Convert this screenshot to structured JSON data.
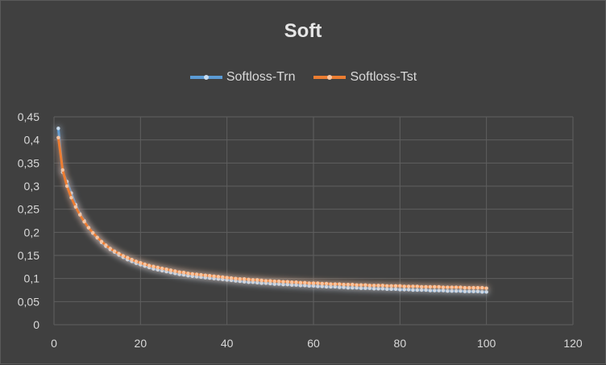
{
  "chart_data": {
    "type": "line",
    "title": "Soft",
    "xlabel": "",
    "ylabel": "",
    "xlim": [
      0,
      120
    ],
    "ylim": [
      0,
      0.45
    ],
    "x_ticks": [
      "0",
      "20",
      "40",
      "60",
      "80",
      "100",
      "120"
    ],
    "y_ticks": [
      "0",
      "0,05",
      "0,1",
      "0,15",
      "0,2",
      "0,25",
      "0,3",
      "0,35",
      "0,4",
      "0,45"
    ],
    "grid": true,
    "legend_position": "top",
    "x": [
      1,
      2,
      3,
      4,
      5,
      6,
      7,
      8,
      9,
      10,
      11,
      12,
      13,
      14,
      15,
      16,
      17,
      18,
      19,
      20,
      21,
      22,
      23,
      24,
      25,
      26,
      27,
      28,
      29,
      30,
      31,
      32,
      33,
      34,
      35,
      36,
      37,
      38,
      39,
      40,
      41,
      42,
      43,
      44,
      45,
      46,
      47,
      48,
      49,
      50,
      51,
      52,
      53,
      54,
      55,
      56,
      57,
      58,
      59,
      60,
      61,
      62,
      63,
      64,
      65,
      66,
      67,
      68,
      69,
      70,
      71,
      72,
      73,
      74,
      75,
      76,
      77,
      78,
      79,
      80,
      81,
      82,
      83,
      84,
      85,
      86,
      87,
      88,
      89,
      90,
      91,
      92,
      93,
      94,
      95,
      96,
      97,
      98,
      99,
      100
    ],
    "series": [
      {
        "name": "Softloss-Trn",
        "color": "#5b9bd5",
        "values": [
          0.425,
          0.33,
          0.31,
          0.285,
          0.26,
          0.24,
          0.225,
          0.21,
          0.198,
          0.188,
          0.178,
          0.17,
          0.163,
          0.157,
          0.151,
          0.146,
          0.141,
          0.137,
          0.133,
          0.13,
          0.127,
          0.124,
          0.121,
          0.119,
          0.117,
          0.115,
          0.113,
          0.111,
          0.109,
          0.108,
          0.106,
          0.105,
          0.104,
          0.103,
          0.102,
          0.101,
          0.1,
          0.099,
          0.098,
          0.097,
          0.096,
          0.095,
          0.094,
          0.093,
          0.092,
          0.092,
          0.091,
          0.09,
          0.09,
          0.089,
          0.088,
          0.088,
          0.087,
          0.087,
          0.086,
          0.086,
          0.085,
          0.085,
          0.084,
          0.084,
          0.083,
          0.083,
          0.082,
          0.082,
          0.082,
          0.081,
          0.081,
          0.08,
          0.08,
          0.08,
          0.079,
          0.079,
          0.079,
          0.078,
          0.078,
          0.078,
          0.077,
          0.077,
          0.077,
          0.076,
          0.076,
          0.076,
          0.075,
          0.075,
          0.075,
          0.075,
          0.074,
          0.074,
          0.074,
          0.074,
          0.073,
          0.073,
          0.073,
          0.073,
          0.072,
          0.072,
          0.072,
          0.072,
          0.071,
          0.071
        ]
      },
      {
        "name": "Softloss-Tst",
        "color": "#ed7d31",
        "values": [
          0.405,
          0.335,
          0.3,
          0.275,
          0.255,
          0.238,
          0.223,
          0.21,
          0.199,
          0.189,
          0.18,
          0.172,
          0.165,
          0.159,
          0.154,
          0.149,
          0.145,
          0.141,
          0.137,
          0.134,
          0.131,
          0.128,
          0.126,
          0.124,
          0.122,
          0.12,
          0.118,
          0.116,
          0.114,
          0.113,
          0.111,
          0.11,
          0.109,
          0.108,
          0.107,
          0.106,
          0.105,
          0.104,
          0.103,
          0.102,
          0.101,
          0.1,
          0.099,
          0.099,
          0.098,
          0.097,
          0.097,
          0.096,
          0.095,
          0.095,
          0.094,
          0.094,
          0.093,
          0.093,
          0.092,
          0.092,
          0.091,
          0.091,
          0.09,
          0.09,
          0.09,
          0.089,
          0.089,
          0.088,
          0.088,
          0.088,
          0.087,
          0.087,
          0.087,
          0.086,
          0.086,
          0.086,
          0.085,
          0.085,
          0.085,
          0.085,
          0.084,
          0.084,
          0.084,
          0.084,
          0.083,
          0.083,
          0.083,
          0.083,
          0.082,
          0.082,
          0.082,
          0.082,
          0.082,
          0.081,
          0.081,
          0.081,
          0.081,
          0.081,
          0.08,
          0.08,
          0.08,
          0.08,
          0.08,
          0.079
        ]
      }
    ]
  }
}
